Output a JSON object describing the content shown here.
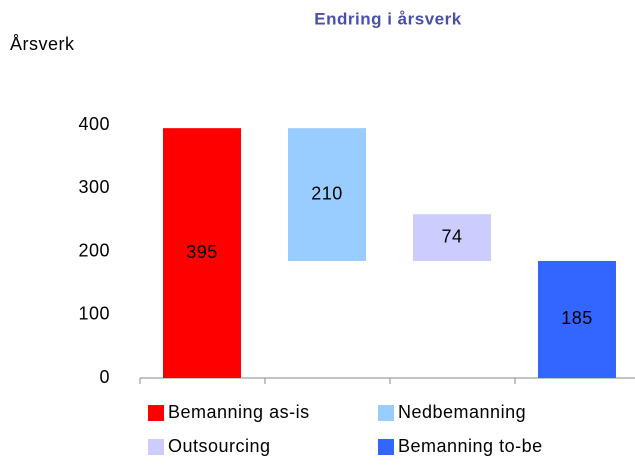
{
  "chart_data": {
    "type": "waterfall",
    "title": "Endring i årsverk",
    "y_label": "Årsverk",
    "categories": [
      "Bemanning as-is",
      "Nedbemanning",
      "Outsourcing",
      "Bemanning to-be"
    ],
    "values": [
      395,
      210,
      74,
      185
    ],
    "colors": [
      "#ff0000",
      "#99ccff",
      "#ccccff",
      "#3366ff"
    ],
    "ylim": [
      0,
      400
    ],
    "yticks": [
      0,
      100,
      200,
      300,
      400
    ],
    "grid": false
  }
}
